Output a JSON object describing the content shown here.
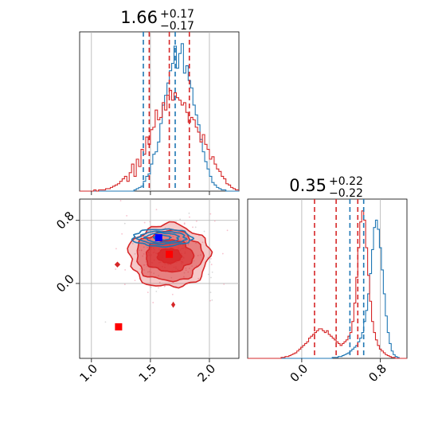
{
  "chart_data": [
    {
      "type": "histogram",
      "panel": "top-left",
      "title": {
        "value": "1.66",
        "plus": "+0.17",
        "minus": "−0.17"
      },
      "xlim": [
        0.9,
        2.25
      ],
      "grid": true,
      "series": [
        {
          "color": "#1f77b4",
          "bin_start": 0.9,
          "bin_width": 0.02,
          "counts": [
            0,
            0,
            0,
            0,
            0,
            0,
            0,
            0,
            0,
            0,
            0,
            0,
            0,
            0,
            0,
            0,
            0,
            0,
            0,
            0,
            0,
            0,
            0,
            1,
            2,
            3,
            4,
            8,
            12,
            14,
            22,
            30,
            32,
            40,
            55,
            70,
            78,
            88,
            98,
            104,
            118,
            100,
            112,
            120,
            96,
            102,
            90,
            84,
            70,
            62,
            54,
            42,
            32,
            24,
            18,
            12,
            7,
            5,
            3,
            2,
            1,
            1,
            0,
            0,
            0,
            0,
            0,
            0
          ],
          "quantile_lines": [
            1.44,
            1.71
          ]
        },
        {
          "color": "#d62728",
          "bin_start": 0.9,
          "bin_width": 0.02,
          "counts": [
            0,
            0,
            0,
            0,
            0,
            0,
            1,
            0,
            1,
            1,
            1,
            2,
            2,
            3,
            4,
            5,
            6,
            8,
            10,
            12,
            8,
            15,
            22,
            12,
            26,
            20,
            34,
            30,
            44,
            38,
            50,
            52,
            66,
            58,
            60,
            72,
            66,
            78,
            82,
            74,
            80,
            76,
            74,
            70,
            72,
            64,
            56,
            60,
            58,
            52,
            48,
            40,
            46,
            38,
            34,
            26,
            28,
            22,
            18,
            16,
            12,
            10,
            6,
            5,
            3,
            2,
            1,
            1
          ],
          "quantile_lines": [
            1.49,
            1.66,
            1.83
          ]
        }
      ]
    },
    {
      "type": "histogram",
      "panel": "bottom-right",
      "title": {
        "value": "0.35",
        "plus": "+0.22",
        "minus": "−0.22"
      },
      "xlim": [
        -0.55,
        1.07
      ],
      "x_ticks": [
        "0.0",
        "0.8"
      ],
      "grid": true,
      "series": [
        {
          "color": "#1f77b4",
          "bin_start": -0.55,
          "bin_width": 0.02,
          "counts": [
            0,
            0,
            0,
            0,
            0,
            0,
            0,
            0,
            0,
            0,
            0,
            0,
            0,
            0,
            0,
            0,
            0,
            0,
            0,
            0,
            0,
            0,
            0,
            0,
            0,
            0,
            0,
            0,
            0,
            0,
            0,
            0,
            0,
            0,
            0,
            0,
            0,
            0,
            0,
            0,
            0,
            0,
            0,
            1,
            1,
            1,
            2,
            2,
            3,
            4,
            5,
            6,
            8,
            10,
            12,
            14,
            18,
            22,
            28,
            40,
            52,
            70,
            92,
            118,
            142,
            150,
            140,
            120,
            96,
            70,
            46,
            28,
            16,
            8,
            4,
            2,
            1,
            0,
            0,
            0,
            0
          ],
          "quantile_lines": [
            0.49,
            0.63
          ]
        },
        {
          "color": "#d62728",
          "bin_start": -0.55,
          "bin_width": 0.02,
          "counts": [
            0,
            0,
            0,
            0,
            0,
            0,
            0,
            0,
            0,
            0,
            0,
            0,
            0,
            0,
            0,
            0,
            0,
            1,
            1,
            2,
            2,
            3,
            4,
            5,
            6,
            8,
            10,
            12,
            14,
            16,
            18,
            22,
            24,
            26,
            28,
            30,
            32,
            32,
            30,
            28,
            30,
            26,
            24,
            22,
            20,
            18,
            16,
            14,
            16,
            18,
            20,
            24,
            28,
            40,
            60,
            88,
            120,
            148,
            160,
            150,
            120,
            90,
            62,
            40,
            28,
            20,
            14,
            10,
            8,
            6,
            4,
            3,
            2,
            1,
            1,
            0,
            0,
            0,
            0,
            0,
            0
          ],
          "quantile_lines": [
            0.13,
            0.35,
            0.57
          ]
        }
      ]
    },
    {
      "type": "contour",
      "panel": "bottom-left",
      "xlim": [
        0.9,
        2.25
      ],
      "ylim": [
        -0.95,
        1.07
      ],
      "x_ticks": [
        "1.0",
        "1.5",
        "2.0"
      ],
      "y_ticks": [
        "0.0",
        "0.8"
      ],
      "grid": true,
      "series": [
        {
          "color": "#d62728",
          "filled": true,
          "center": [
            1.66,
            0.35
          ],
          "sigma_levels": [
            {
              "sx": 0.1,
              "sy": 0.09
            },
            {
              "sx": 0.2,
              "sy": 0.2
            },
            {
              "sx": 0.28,
              "sy": 0.32
            },
            {
              "sx": 0.34,
              "sy": 0.4
            }
          ],
          "points": [
            [
              1.66,
              0.37
            ],
            [
              1.23,
              -0.55
            ]
          ]
        },
        {
          "color": "#1f77b4",
          "filled": false,
          "center": [
            1.6,
            0.58
          ],
          "sigma_levels": [
            {
              "sx": 0.07,
              "sy": 0.03
            },
            {
              "sx": 0.14,
              "sy": 0.06
            },
            {
              "sx": 0.2,
              "sy": 0.08
            },
            {
              "sx": 0.25,
              "sy": 0.11
            }
          ],
          "points": [
            [
              1.57,
              0.58
            ]
          ]
        }
      ]
    }
  ]
}
